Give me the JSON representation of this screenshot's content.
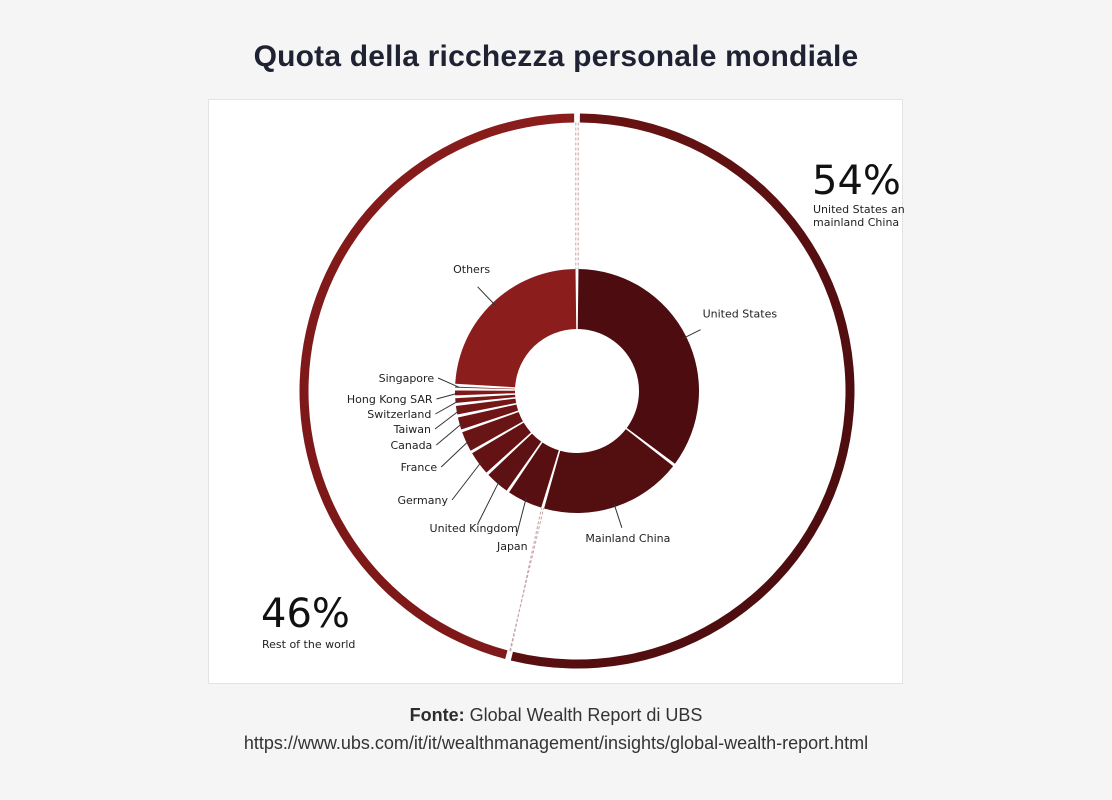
{
  "title": "Quota della ricchezza personale mondiale",
  "source": {
    "label": "Fonte:",
    "text": "Global Wealth Report di UBS",
    "url": "https://www.ubs.com/it/it/wealthmanagement/insights/global-wealth-report.html"
  },
  "chart_data": {
    "type": "pie",
    "outer_ring": {
      "segments": [
        {
          "value": 54,
          "display": "54%",
          "label_lines": [
            "United States and",
            "mainland China"
          ]
        },
        {
          "value": 46,
          "display": "46%",
          "label_lines": [
            "Rest of the world"
          ]
        }
      ]
    },
    "inner_ring": {
      "unit": "percent of world wealth (estimated)",
      "segments": [
        {
          "label": "United States",
          "value": 35
        },
        {
          "label": "Mainland China",
          "value": 19
        },
        {
          "label": "Japan",
          "value": 5
        },
        {
          "label": "United Kingdom",
          "value": 3.5
        },
        {
          "label": "Germany",
          "value": 3.5
        },
        {
          "label": "France",
          "value": 3
        },
        {
          "label": "Canada",
          "value": 2
        },
        {
          "label": "Taiwan",
          "value": 1.5
        },
        {
          "label": "Switzerland",
          "value": 1
        },
        {
          "label": "Hong Kong SAR",
          "value": 1
        },
        {
          "label": "Singapore",
          "value": 0.5
        },
        {
          "label": "Others",
          "value": 24
        }
      ]
    },
    "colors": {
      "dark": "#4d0c0f",
      "light": "#8b1d1c"
    }
  }
}
